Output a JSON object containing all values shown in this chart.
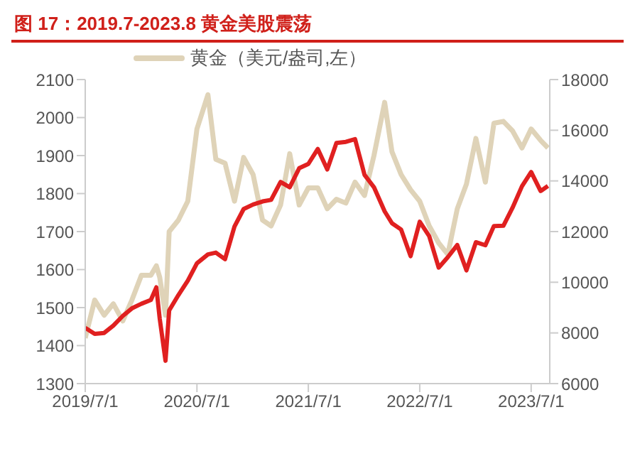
{
  "chart_data": {
    "type": "line",
    "title": "图 17：2019.7-2023.8 黄金美股震荡",
    "x": [
      "2019-07-01",
      "2019-08-01",
      "2019-09-01",
      "2019-10-01",
      "2019-11-01",
      "2019-12-01",
      "2020-01-01",
      "2020-02-01",
      "2020-02-19",
      "2020-03-01",
      "2020-03-20",
      "2020-04-01",
      "2020-05-01",
      "2020-06-01",
      "2020-07-01",
      "2020-08-06",
      "2020-09-01",
      "2020-10-01",
      "2020-11-01",
      "2020-12-01",
      "2021-01-01",
      "2021-02-01",
      "2021-03-01",
      "2021-04-01",
      "2021-05-01",
      "2021-06-01",
      "2021-07-01",
      "2021-08-01",
      "2021-09-01",
      "2021-10-01",
      "2021-11-01",
      "2021-12-01",
      "2022-01-01",
      "2022-02-01",
      "2022-03-08",
      "2022-04-01",
      "2022-05-01",
      "2022-06-01",
      "2022-07-01",
      "2022-08-01",
      "2022-09-01",
      "2022-10-01",
      "2022-11-01",
      "2022-12-01",
      "2023-01-01",
      "2023-02-01",
      "2023-03-01",
      "2023-04-01",
      "2023-05-01",
      "2023-06-01",
      "2023-07-01",
      "2023-08-01",
      "2023-08-25"
    ],
    "series": [
      {
        "name": "黄金（美元/盎司,左）",
        "color": "#dfd3b8",
        "values": [
          1420,
          1520,
          1480,
          1510,
          1465,
          1520,
          1585,
          1585,
          1610,
          1580,
          1480,
          1700,
          1730,
          1780,
          1970,
          2060,
          1890,
          1880,
          1780,
          1895,
          1850,
          1730,
          1715,
          1770,
          1905,
          1770,
          1815,
          1815,
          1760,
          1785,
          1775,
          1830,
          1795,
          1900,
          2040,
          1910,
          1850,
          1810,
          1780,
          1715,
          1670,
          1640,
          1760,
          1825,
          1945,
          1830,
          1985,
          1990,
          1965,
          1920,
          1970,
          1940,
          1920
        ]
      },
      {
        "color": "#e02020",
        "axis": "y2",
        "values": [
          8200,
          7960,
          8000,
          8290,
          8670,
          8970,
          9150,
          9300,
          9800,
          8570,
          6900,
          8890,
          9490,
          10060,
          10750,
          11100,
          11170,
          10910,
          12200,
          12890,
          13070,
          13190,
          13250,
          13960,
          13750,
          14500,
          14670,
          15260,
          14450,
          15500,
          15540,
          15650,
          14240,
          13750,
          12800,
          12330,
          12080,
          11030,
          12390,
          11820,
          10580,
          10990,
          11470,
          10470,
          11580,
          11460,
          12220,
          12230,
          12940,
          13790,
          14350,
          13600,
          13800
        ]
      }
    ],
    "xlim": [
      "2019-07-01",
      "2023-08-31"
    ],
    "xticks": [
      {
        "value": "2019-07-01",
        "label": "2019/7/1"
      },
      {
        "value": "2020-07-01",
        "label": "2020/7/1"
      },
      {
        "value": "2021-07-01",
        "label": "2021/7/1"
      },
      {
        "value": "2022-07-01",
        "label": "2022/7/1"
      },
      {
        "value": "2023-07-01",
        "label": "2023/7/1"
      }
    ],
    "ylim": [
      1300,
      2100
    ],
    "yticks": [
      1300,
      1400,
      1500,
      1600,
      1700,
      1800,
      1900,
      2000,
      2100
    ],
    "y2lim": [
      6000,
      18000
    ],
    "y2ticks": [
      6000,
      8000,
      10000,
      12000,
      14000,
      16000,
      18000
    ],
    "legend": "top left",
    "marker": "none",
    "line_style": "solid"
  }
}
